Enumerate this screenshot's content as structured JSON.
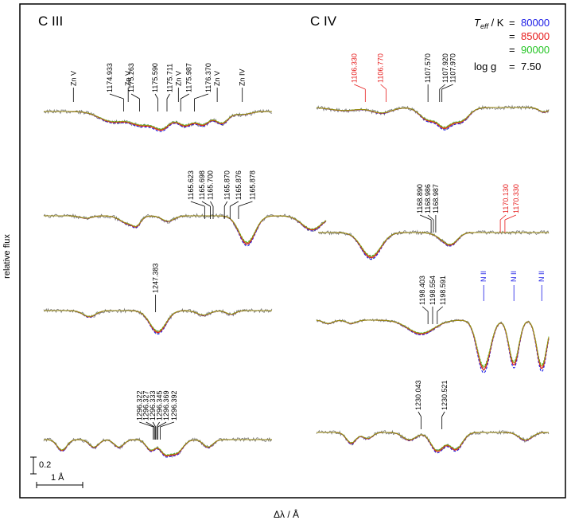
{
  "chart_data": {
    "type": "line",
    "xlabel": "Δλ / Å",
    "ylabel": "relative flux",
    "legend": {
      "teff_label": "T",
      "teff_sub": "eff",
      "teff_unit": " / K",
      "logg_label": "log g",
      "logg_value": "7.50",
      "placement": "top-right",
      "entries": [
        {
          "eq": "=",
          "label": "80000",
          "color": "#1a1ae6"
        },
        {
          "eq": "=",
          "label": "85000",
          "color": "#e61a1a"
        },
        {
          "eq": "=",
          "label": "90000",
          "color": "#22c422"
        }
      ]
    },
    "colors": {
      "observed": "#7a7a7a",
      "model_overlay": "#9a8a14",
      "axis": "#000000"
    },
    "scale_bars": {
      "flux": "0.2",
      "wavelength": "1 Å"
    },
    "panel_titles": {
      "left": "C III",
      "right": "C IV"
    },
    "ion_labels": {
      "civ_nii": "N II"
    },
    "panels": [
      {
        "id": "c3-1175",
        "lines": [
          {
            "label": "1174.933",
            "color": "#000000"
          },
          {
            "label": "1175.263",
            "color": "#000000"
          },
          {
            "label": "1175.590",
            "color": "#000000"
          },
          {
            "label": "1175.711",
            "color": "#000000"
          },
          {
            "label": "1175.987",
            "color": "#000000"
          },
          {
            "label": "1176.370",
            "color": "#000000"
          }
        ],
        "ions": [
          {
            "label": "Zn V",
            "color": "#000000"
          },
          {
            "label": "Zn V",
            "color": "#000000"
          },
          {
            "label": "Zn V",
            "color": "#000000"
          },
          {
            "label": "Zn V",
            "color": "#000000"
          },
          {
            "label": "Zn IV",
            "color": "#000000"
          }
        ],
        "dips": [
          [
            0.3,
            0.08,
            0.33
          ],
          [
            0.43,
            0.07,
            0.42
          ],
          [
            0.52,
            0.05,
            0.5
          ],
          [
            0.62,
            0.05,
            0.45
          ],
          [
            0.7,
            0.04,
            0.4
          ],
          [
            0.78,
            0.04,
            0.38
          ],
          [
            0.87,
            0.05,
            0.1
          ]
        ]
      },
      {
        "id": "c3-1165",
        "lines": [
          {
            "label": "1165.623",
            "color": "#000000"
          },
          {
            "label": "1165.698",
            "color": "#000000"
          },
          {
            "label": "1165.700",
            "color": "#000000"
          },
          {
            "label": "1165.870",
            "color": "#000000"
          },
          {
            "label": "1165.876",
            "color": "#000000"
          },
          {
            "label": "1165.878",
            "color": "#000000"
          }
        ],
        "ions": [],
        "dips": [
          [
            0.15,
            0.03,
            0.08
          ],
          [
            0.3,
            0.04,
            0.25
          ],
          [
            0.33,
            0.02,
            0.2
          ],
          [
            0.44,
            0.03,
            0.18
          ],
          [
            0.72,
            0.04,
            0.9
          ],
          [
            0.95,
            0.05,
            0.45
          ]
        ]
      },
      {
        "id": "c3-1247",
        "lines": [
          {
            "label": "1247.383",
            "color": "#000000"
          }
        ],
        "ions": [],
        "dips": [
          [
            0.2,
            0.04,
            0.2
          ],
          [
            0.5,
            0.05,
            0.7
          ],
          [
            0.7,
            0.04,
            0.15
          ],
          [
            0.82,
            0.03,
            0.12
          ]
        ]
      },
      {
        "id": "c3-1296",
        "lines": [
          {
            "label": "1296.322",
            "color": "#000000"
          },
          {
            "label": "1296.327",
            "color": "#000000"
          },
          {
            "label": "1296.333",
            "color": "#000000"
          },
          {
            "label": "1296.345",
            "color": "#000000"
          },
          {
            "label": "1296.369",
            "color": "#000000"
          },
          {
            "label": "1296.392",
            "color": "#000000"
          }
        ],
        "ions": [],
        "dips": [
          [
            0.08,
            0.03,
            0.35
          ],
          [
            0.22,
            0.03,
            0.25
          ],
          [
            0.33,
            0.03,
            0.25
          ],
          [
            0.47,
            0.03,
            0.35
          ],
          [
            0.53,
            0.03,
            0.4
          ],
          [
            0.58,
            0.04,
            0.45
          ],
          [
            0.72,
            0.03,
            0.25
          ]
        ]
      },
      {
        "id": "c4-1107",
        "lines": [
          {
            "label": "1106.330",
            "color": "#e61a1a"
          },
          {
            "label": "1106.770",
            "color": "#e61a1a"
          },
          {
            "label": "1107.570",
            "color": "#000000"
          },
          {
            "label": "1107.920",
            "color": "#000000"
          },
          {
            "label": "1107.970",
            "color": "#000000"
          }
        ],
        "ions": [],
        "dips": [
          [
            0.12,
            0.08,
            0.1
          ],
          [
            0.28,
            0.06,
            0.18
          ],
          [
            0.48,
            0.05,
            0.4
          ],
          [
            0.55,
            0.04,
            0.55
          ],
          [
            0.62,
            0.05,
            0.45
          ],
          [
            0.98,
            0.03,
            0.15
          ]
        ]
      },
      {
        "id": "c4-1169",
        "lines": [
          {
            "label": "1168.890",
            "color": "#000000"
          },
          {
            "label": "1168.986",
            "color": "#000000"
          },
          {
            "label": "1168.987",
            "color": "#000000"
          },
          {
            "label": "1170.130",
            "color": "#e61a1a"
          },
          {
            "label": "1170.330",
            "color": "#e61a1a"
          }
        ],
        "ions": [],
        "dips": [
          [
            0.23,
            0.06,
            0.8
          ],
          [
            0.55,
            0.05,
            0.2
          ],
          [
            0.58,
            0.04,
            0.25
          ]
        ]
      },
      {
        "id": "c4-1198",
        "lines": [
          {
            "label": "1198.403",
            "color": "#000000"
          },
          {
            "label": "1198.554",
            "color": "#000000"
          },
          {
            "label": "1198.591",
            "color": "#000000"
          }
        ],
        "ions": [],
        "dips": [
          [
            0.05,
            0.03,
            0.15
          ],
          [
            0.15,
            0.03,
            0.15
          ],
          [
            0.45,
            0.08,
            0.6
          ],
          [
            0.72,
            0.04,
            2.15
          ],
          [
            0.85,
            0.03,
            1.95
          ],
          [
            0.97,
            0.03,
            2.1
          ]
        ]
      },
      {
        "id": "c4-1230",
        "lines": [
          {
            "label": "1230.043",
            "color": "#000000"
          },
          {
            "label": "1230.521",
            "color": "#000000"
          }
        ],
        "ions": [],
        "dips": [
          [
            0.15,
            0.03,
            0.35
          ],
          [
            0.22,
            0.03,
            0.2
          ],
          [
            0.4,
            0.04,
            0.25
          ],
          [
            0.52,
            0.04,
            0.6
          ],
          [
            0.6,
            0.04,
            0.55
          ],
          [
            0.9,
            0.04,
            0.25
          ]
        ]
      }
    ]
  }
}
